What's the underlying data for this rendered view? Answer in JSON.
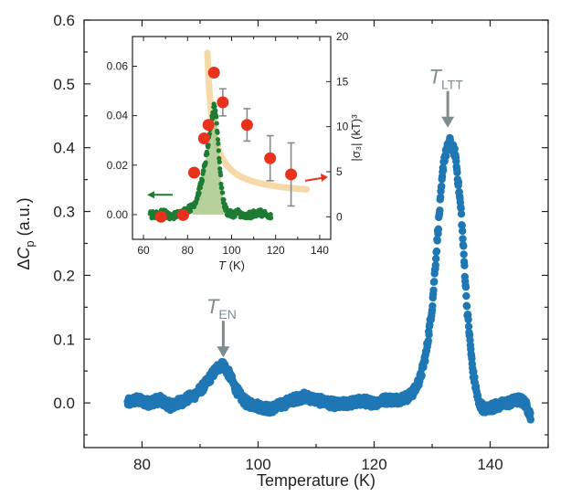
{
  "chart_data": [
    {
      "id": "main",
      "type": "scatter",
      "xlabel": "Temperature (K)",
      "ylabel": "ΔC_p (a.u.)",
      "ylabel_parts": {
        "prefix": "Δ",
        "var": "C",
        "sub": "p",
        "suffix": " (a.u.)"
      },
      "xlim": [
        70,
        150
      ],
      "ylim": [
        -0.07,
        0.6
      ],
      "xticks": [
        80,
        100,
        120,
        140
      ],
      "yticks": [
        0.0,
        0.1,
        0.2,
        0.3,
        0.4,
        0.5,
        0.6
      ],
      "ytick_labels": [
        "0.0",
        "0.1",
        "0.2",
        "0.3",
        "0.4",
        "0.5",
        "0.6"
      ],
      "grid": false,
      "marker_color": "#1f77b4",
      "series": [
        {
          "x": [
            77.5,
            79,
            81,
            83,
            85,
            87,
            89,
            90,
            91,
            92,
            93,
            94,
            95,
            96,
            97,
            98,
            100,
            102,
            104,
            106,
            108,
            110,
            112,
            114,
            116,
            118,
            120,
            122,
            124,
            126,
            127,
            128,
            129,
            130,
            131,
            132,
            133,
            134,
            135,
            136,
            137,
            138,
            139,
            141,
            143,
            145,
            146,
            147
          ],
          "y": [
            0.0,
            0.005,
            0.0,
            0.005,
            -0.005,
            0.003,
            0.012,
            0.02,
            0.03,
            0.043,
            0.055,
            0.06,
            0.045,
            0.025,
            0.01,
            0.0,
            -0.005,
            -0.01,
            -0.003,
            0.005,
            0.01,
            0.005,
            0.0,
            -0.003,
            0.0,
            0.003,
            0.0,
            0.005,
            0.005,
            0.01,
            0.02,
            0.04,
            0.08,
            0.15,
            0.27,
            0.38,
            0.41,
            0.39,
            0.3,
            0.15,
            0.05,
            0.0,
            -0.01,
            -0.005,
            0.0,
            0.005,
            0.0,
            -0.02
          ]
        }
      ],
      "annotations": [
        {
          "label": "T",
          "sub": "EN",
          "x": 94,
          "y_arrow_tip": 0.06
        },
        {
          "label": "T",
          "sub": "LTT",
          "x": 132.7,
          "y_arrow_tip": 0.42
        }
      ],
      "annotation_color": "#7f8c8d"
    },
    {
      "id": "inset",
      "type": "scatter",
      "xlabel": "T (K)",
      "xlabel_parts": {
        "var": "T",
        "suffix": " (K)"
      },
      "ylabel_left": "",
      "ylabel_right": "|σ₃| (kT)³",
      "xlim": [
        55,
        145
      ],
      "ylim_left": [
        -0.01,
        0.072
      ],
      "ylim_right": [
        -2.5,
        20
      ],
      "xticks": [
        60,
        70,
        80,
        90,
        100,
        110,
        120,
        130,
        140
      ],
      "xtick_labels": [
        "60",
        "",
        "80",
        "",
        "100",
        "",
        "120",
        "",
        "140"
      ],
      "yticks_left": [
        0.0,
        0.02,
        0.04,
        0.06
      ],
      "ytick_labels_left": [
        "0.00",
        "0.02",
        "0.04",
        "0.06"
      ],
      "yticks_right": [
        0,
        5,
        10,
        15,
        20
      ],
      "ytick_labels_right": [
        "0",
        "5",
        "10",
        "15",
        "20"
      ],
      "green_color": "#1e7b34",
      "fill_color": "#a9c98a",
      "red_color": "#e8321e",
      "curve_color": "#f5d9a8",
      "series": [
        {
          "axis": "left",
          "x": [
            63,
            66,
            69,
            72,
            75,
            78,
            80,
            82,
            84,
            85,
            86,
            87,
            88,
            89,
            90,
            91,
            92,
            93,
            94,
            95,
            96,
            97,
            98,
            100,
            103,
            106,
            109,
            112,
            115,
            118
          ],
          "y": [
            0.0,
            0.0,
            0.001,
            -0.001,
            0.0,
            0.001,
            0.002,
            0.003,
            0.006,
            0.009,
            0.012,
            0.016,
            0.021,
            0.026,
            0.032,
            0.038,
            0.045,
            0.04,
            0.028,
            0.015,
            0.007,
            0.003,
            0.001,
            0.0,
            0.001,
            -0.001,
            0.0,
            0.001,
            0.0,
            -0.001
          ]
        },
        {
          "axis": "right",
          "x": [
            68,
            78,
            83,
            87.5,
            89.5,
            92,
            96,
            107,
            117.5,
            127
          ],
          "y": [
            0,
            0.2,
            4.9,
            8.7,
            10.2,
            16,
            12.7,
            10.2,
            6.5,
            4.7
          ],
          "err": [
            0,
            0,
            0,
            0,
            0,
            0,
            1.5,
            1.8,
            2.5,
            3.5
          ]
        }
      ],
      "arrow_left_label": "",
      "arrow_right_label": ""
    }
  ]
}
